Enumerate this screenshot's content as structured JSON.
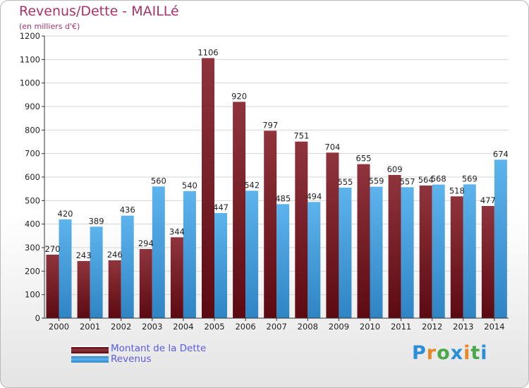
{
  "header": {
    "title": "Revenus/Dette - MAILLé",
    "subtitle": "(en milliers d'€)"
  },
  "legend": {
    "items": [
      {
        "label": "Montant de la Dette",
        "color": "#7a1f26"
      },
      {
        "label": "Revenus",
        "color": "#4aa3e0"
      }
    ]
  },
  "logo": {
    "text": "Proxiti"
  },
  "chart_data": {
    "type": "bar",
    "categories": [
      "2000",
      "2001",
      "2002",
      "2003",
      "2004",
      "2005",
      "2006",
      "2007",
      "2008",
      "2009",
      "2010",
      "2011",
      "2012",
      "2013",
      "2014"
    ],
    "series": [
      {
        "name": "Montant de la Dette",
        "color": "#7a1f26",
        "values": [
          270,
          243,
          246,
          294,
          344,
          1106,
          920,
          797,
          751,
          704,
          655,
          609,
          564,
          518,
          477
        ]
      },
      {
        "name": "Revenus",
        "color": "#4aa3e0",
        "values": [
          420,
          389,
          436,
          560,
          540,
          447,
          542,
          485,
          494,
          555,
          559,
          557,
          568,
          569,
          674
        ]
      }
    ],
    "title": "Revenus/Dette - MAILLé",
    "subtitle": "(en milliers d'€)",
    "ylim": [
      0,
      1200
    ],
    "yticks": [
      0,
      100,
      200,
      300,
      400,
      500,
      600,
      700,
      800,
      900,
      1000,
      1100,
      1200
    ],
    "grid": true,
    "legend_position": "bottom-left"
  }
}
